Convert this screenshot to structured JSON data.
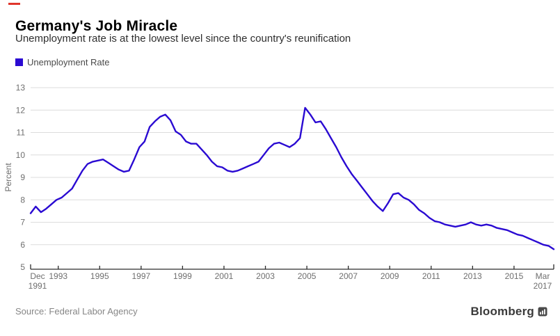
{
  "accent": {
    "red_dash_color": "#e0352b"
  },
  "header": {
    "title": "Germany's Job Miracle",
    "subtitle": "Unemployment rate is at the lowest level since the country's reunification"
  },
  "legend": {
    "label": "Unemployment Rate",
    "swatch_color": "#2a0ad2"
  },
  "footer": {
    "source": "Source: Federal Labor Agency",
    "brand": "Bloomberg"
  },
  "chart_data": {
    "type": "line",
    "title": "Germany's Job Miracle",
    "series_name": "Unemployment Rate",
    "ylabel": "Percent",
    "ylim": [
      5,
      13
    ],
    "yticks": [
      5,
      6,
      7,
      8,
      9,
      10,
      11,
      12,
      13
    ],
    "xtick_labels": [
      "Dec 1991",
      "1993",
      "1995",
      "1997",
      "1999",
      "2001",
      "2003",
      "2005",
      "2007",
      "2009",
      "2011",
      "2013",
      "2015",
      "Mar 2017"
    ],
    "x_start": "1991-12",
    "x_end": "2017-03",
    "grid": true,
    "legend_position": "top-left",
    "line_color": "#2a0ad2",
    "dates": [
      "1991-12",
      "1992-03",
      "1992-06",
      "1992-09",
      "1992-12",
      "1993-03",
      "1993-06",
      "1993-09",
      "1993-12",
      "1994-03",
      "1994-06",
      "1994-09",
      "1994-12",
      "1995-03",
      "1995-06",
      "1995-09",
      "1995-12",
      "1996-03",
      "1996-06",
      "1996-09",
      "1996-12",
      "1997-03",
      "1997-06",
      "1997-09",
      "1997-12",
      "1998-03",
      "1998-06",
      "1998-09",
      "1998-12",
      "1999-03",
      "1999-06",
      "1999-09",
      "1999-12",
      "2000-03",
      "2000-06",
      "2000-09",
      "2000-12",
      "2001-03",
      "2001-06",
      "2001-09",
      "2001-12",
      "2002-03",
      "2002-06",
      "2002-09",
      "2002-12",
      "2003-03",
      "2003-06",
      "2003-09",
      "2003-12",
      "2004-03",
      "2004-06",
      "2004-09",
      "2004-12",
      "2005-03",
      "2005-06",
      "2005-09",
      "2005-12",
      "2006-03",
      "2006-06",
      "2006-09",
      "2006-12",
      "2007-03",
      "2007-06",
      "2007-09",
      "2007-12",
      "2008-03",
      "2008-06",
      "2008-09",
      "2008-12",
      "2009-03",
      "2009-06",
      "2009-09",
      "2009-12",
      "2010-03",
      "2010-06",
      "2010-09",
      "2010-12",
      "2011-03",
      "2011-06",
      "2011-09",
      "2011-12",
      "2012-03",
      "2012-06",
      "2012-09",
      "2012-12",
      "2013-03",
      "2013-06",
      "2013-09",
      "2013-12",
      "2014-03",
      "2014-06",
      "2014-09",
      "2014-12",
      "2015-03",
      "2015-06",
      "2015-09",
      "2015-12",
      "2016-03",
      "2016-06",
      "2016-09",
      "2016-12",
      "2017-03"
    ],
    "values": [
      7.4,
      7.7,
      7.45,
      7.6,
      7.8,
      8.0,
      8.1,
      8.3,
      8.5,
      8.9,
      9.3,
      9.6,
      9.7,
      9.75,
      9.8,
      9.65,
      9.5,
      9.35,
      9.25,
      9.3,
      9.8,
      10.35,
      10.6,
      11.25,
      11.5,
      11.7,
      11.8,
      11.55,
      11.05,
      10.9,
      10.6,
      10.5,
      10.5,
      10.25,
      10.0,
      9.7,
      9.5,
      9.45,
      9.3,
      9.25,
      9.3,
      9.4,
      9.5,
      9.6,
      9.7,
      10.0,
      10.3,
      10.5,
      10.55,
      10.45,
      10.35,
      10.5,
      10.75,
      12.1,
      11.8,
      11.45,
      11.5,
      11.15,
      10.75,
      10.35,
      9.9,
      9.5,
      9.15,
      8.85,
      8.55,
      8.25,
      7.95,
      7.7,
      7.5,
      7.85,
      8.25,
      8.3,
      8.1,
      8.0,
      7.8,
      7.55,
      7.4,
      7.2,
      7.05,
      7.0,
      6.9,
      6.85,
      6.8,
      6.85,
      6.9,
      7.0,
      6.9,
      6.85,
      6.9,
      6.85,
      6.75,
      6.7,
      6.65,
      6.55,
      6.45,
      6.4,
      6.3,
      6.2,
      6.1,
      6.0,
      5.95,
      5.8
    ]
  }
}
